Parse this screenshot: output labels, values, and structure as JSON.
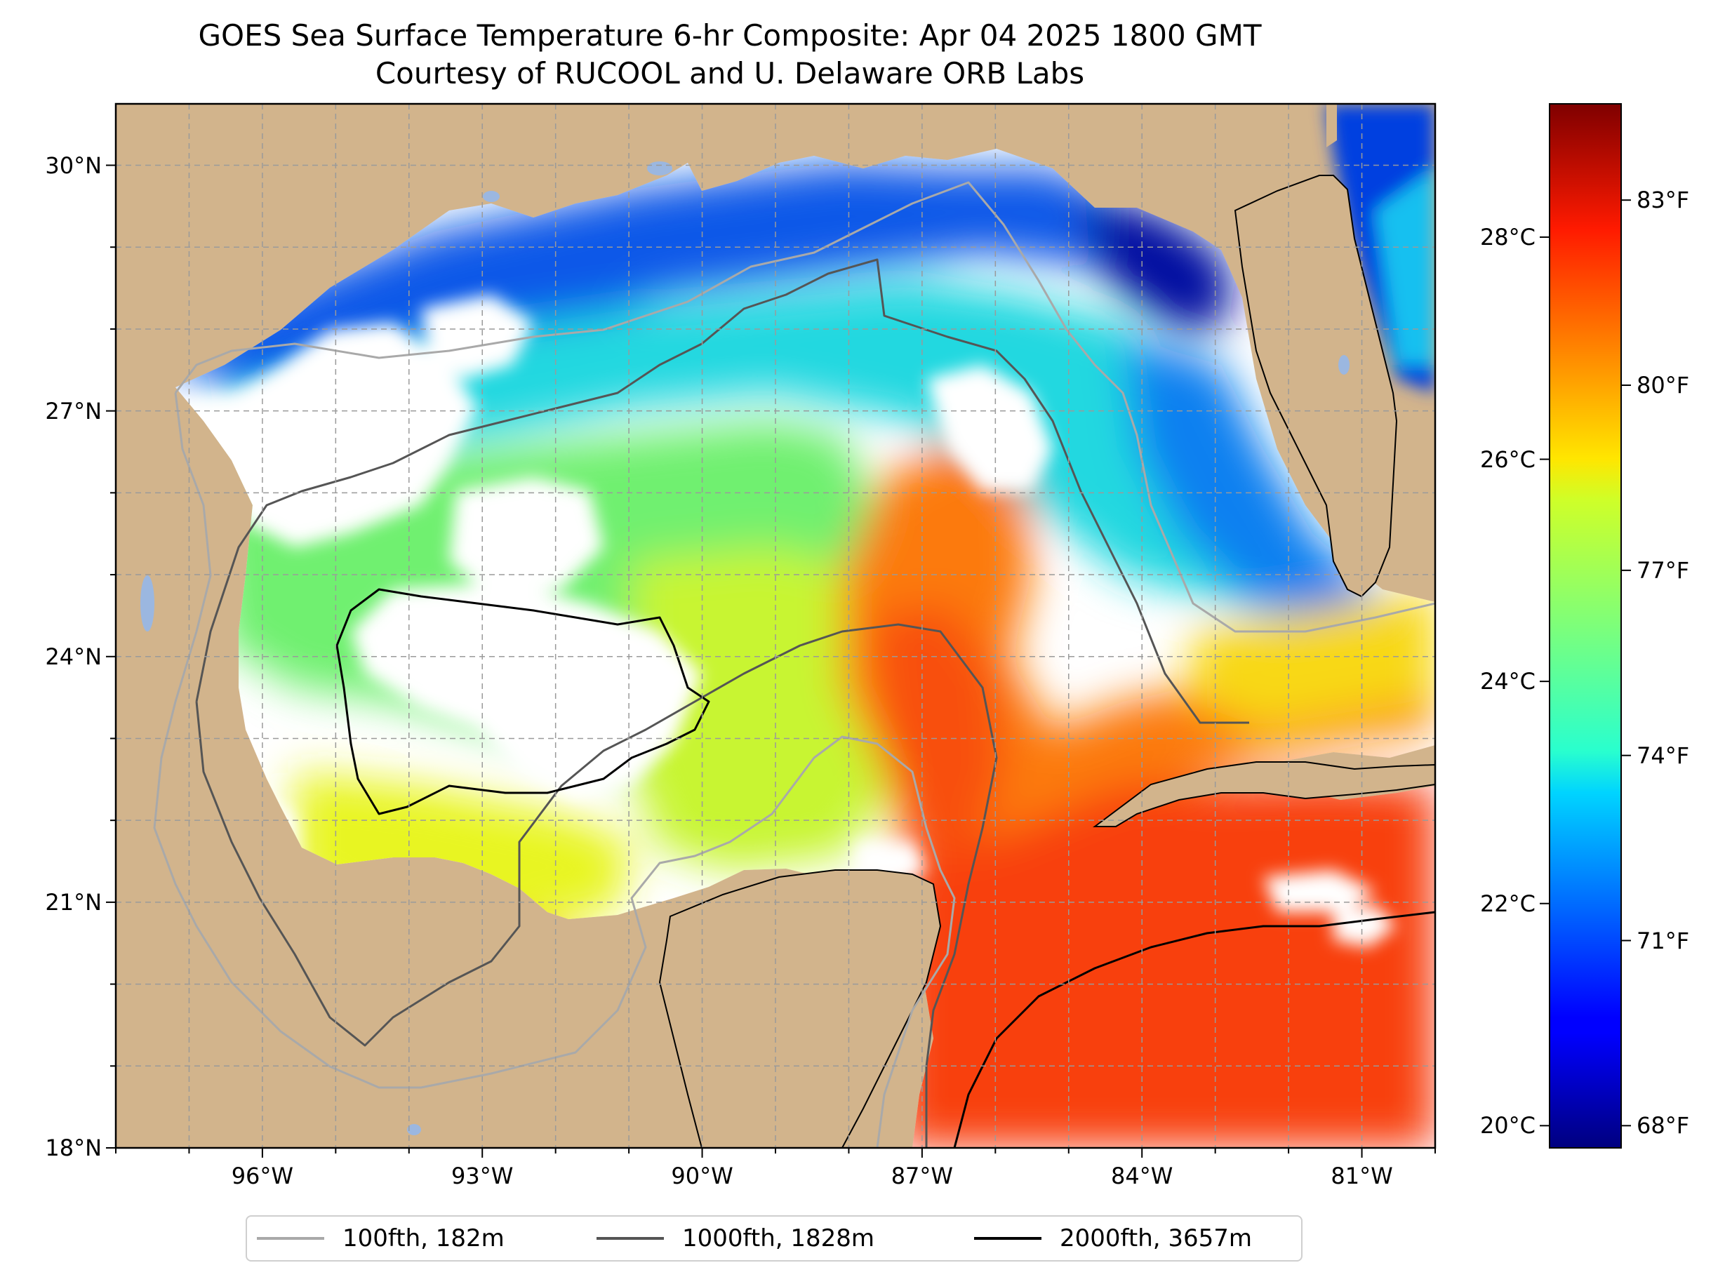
{
  "title": {
    "line1": "GOES Sea Surface Temperature 6-hr Composite: Apr 04 2025 1800 GMT",
    "line2": "Courtesy of RUCOOL and U. Delaware ORB Labs"
  },
  "map": {
    "lon_range": [
      -98,
      -80
    ],
    "lat_range": [
      18,
      30.75
    ],
    "lat_ticks": [
      {
        "value": 30,
        "label": "30°N"
      },
      {
        "value": 27,
        "label": "27°N"
      },
      {
        "value": 24,
        "label": "24°N"
      },
      {
        "value": 21,
        "label": "21°N"
      },
      {
        "value": 18,
        "label": "18°N"
      }
    ],
    "lon_ticks": [
      {
        "value": -96,
        "label": "96°W"
      },
      {
        "value": -93,
        "label": "93°W"
      },
      {
        "value": -90,
        "label": "90°W"
      },
      {
        "value": -87,
        "label": "87°W"
      },
      {
        "value": -84,
        "label": "84°W"
      },
      {
        "value": -81,
        "label": "81°W"
      }
    ],
    "colors": {
      "land": "#d2b48c",
      "no_data": "#ffffff",
      "lakes": "#9bb7e0",
      "grid": "#9a9a9a"
    }
  },
  "colorbar": {
    "colormap": "jet",
    "range_c": [
      19.8,
      29.2
    ],
    "celsius_ticks": [
      {
        "value": 28,
        "label": "28°C"
      },
      {
        "value": 26,
        "label": "26°C"
      },
      {
        "value": 24,
        "label": "24°C"
      },
      {
        "value": 22,
        "label": "22°C"
      },
      {
        "value": 20,
        "label": "20°C"
      }
    ],
    "fahrenheit_ticks": [
      {
        "value": 83,
        "label": "83°F"
      },
      {
        "value": 80,
        "label": "80°F"
      },
      {
        "value": 77,
        "label": "77°F"
      },
      {
        "value": 74,
        "label": "74°F"
      },
      {
        "value": 71,
        "label": "71°F"
      },
      {
        "value": 68,
        "label": "68°F"
      }
    ]
  },
  "legend": {
    "items": [
      {
        "label": "100fth, 182m",
        "color": "#a9a9a9"
      },
      {
        "label": "1000fth, 1828m",
        "color": "#555555"
      },
      {
        "label": "2000fth, 3657m",
        "color": "#000000"
      }
    ]
  }
}
